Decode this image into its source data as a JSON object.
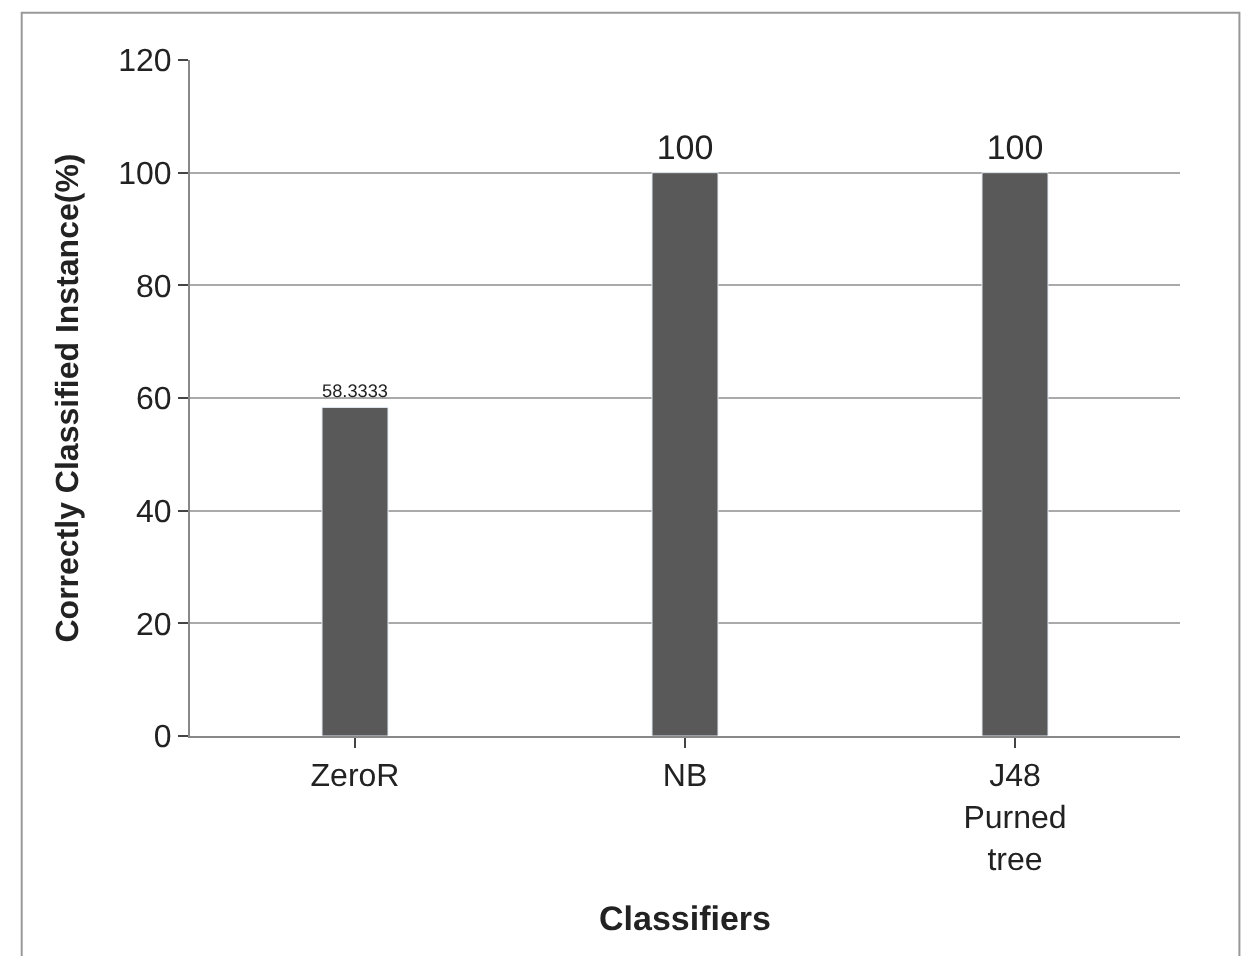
{
  "chart_data": {
    "type": "bar",
    "xlabel": "Classifiers",
    "ylabel": "Correctly Classified Instance(%)",
    "categories": [
      "ZeroR",
      "NB",
      "J48 Purned tree"
    ],
    "values": [
      58.3333,
      100,
      100
    ],
    "color": "#595959",
    "ylim": [
      0,
      120
    ],
    "yticks": [
      0,
      20,
      40,
      60,
      80,
      100,
      120
    ],
    "grid": "y",
    "data_labels": true
  }
}
